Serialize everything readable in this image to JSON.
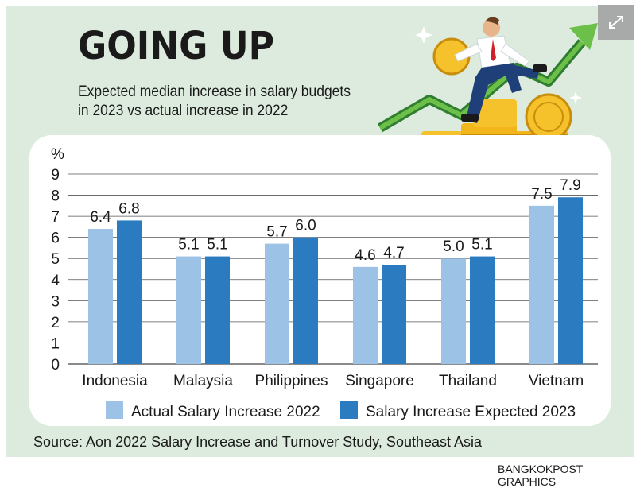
{
  "header": {
    "title": "GOING UP",
    "subtitle_line1": "Expected median increase in salary budgets",
    "subtitle_line2": "in 2023 vs actual increase in 2022",
    "expand_icon": "expand-icon"
  },
  "footer": {
    "source": "Source: Aon 2022 Salary Increase and Turnover Study, Southeast Asia",
    "credit": "BANGKOKPOST GRAPHICS"
  },
  "colors": {
    "panel_bg": "#dcebdd",
    "series_2022": "#9cc3e6",
    "series_2023": "#2b7bc0"
  },
  "chart_data": {
    "type": "bar",
    "title": "",
    "ylabel": "%",
    "xlabel": "",
    "ylim": [
      0,
      9
    ],
    "yticks": [
      0,
      1,
      2,
      3,
      4,
      5,
      6,
      7,
      8,
      9
    ],
    "grid": true,
    "legend": "bottom",
    "categories": [
      "Indonesia",
      "Malaysia",
      "Philippines",
      "Singapore",
      "Thailand",
      "Vietnam"
    ],
    "series": [
      {
        "name": "Actual Salary Increase 2022",
        "values": [
          6.4,
          5.1,
          5.7,
          4.6,
          5.0,
          7.5
        ],
        "labels": [
          "6.4",
          "5.1",
          "5.7",
          "4.6",
          "5.0",
          "7.5"
        ]
      },
      {
        "name": "Salary Increase Expected 2023",
        "values": [
          6.8,
          5.1,
          6.0,
          4.7,
          5.1,
          7.9
        ],
        "labels": [
          "6.8",
          "5.1",
          "6.0",
          "4.7",
          "5.1",
          "7.9"
        ]
      }
    ]
  }
}
